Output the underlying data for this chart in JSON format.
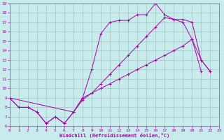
{
  "background_color": "#c8ecec",
  "grid_color": "#9ab8b8",
  "line_color": "#aa00aa",
  "xlabel": "Windchill (Refroidissement éolien,°C)",
  "xlim": [
    0,
    23
  ],
  "ylim": [
    6,
    19
  ],
  "yticks": [
    6,
    7,
    8,
    9,
    10,
    11,
    12,
    13,
    14,
    15,
    16,
    17,
    18,
    19
  ],
  "xticks": [
    0,
    1,
    2,
    3,
    4,
    5,
    6,
    7,
    8,
    9,
    10,
    11,
    12,
    13,
    14,
    15,
    16,
    17,
    18,
    19,
    20,
    21,
    22,
    23
  ],
  "line1_x": [
    0,
    1,
    2,
    3,
    4,
    5,
    6,
    7,
    8,
    9,
    10,
    11,
    12,
    13,
    14,
    15,
    16,
    17,
    18,
    19,
    20,
    21,
    22
  ],
  "line1_y": [
    9.0,
    8.0,
    8.0,
    7.5,
    6.3,
    7.0,
    6.3,
    7.5,
    9.0,
    12.0,
    15.8,
    17.0,
    17.2,
    17.2,
    17.8,
    17.8,
    19.0,
    17.8,
    17.3,
    17.0,
    15.2,
    13.0,
    11.8
  ],
  "line2_x": [
    0,
    1,
    2,
    3,
    4,
    5,
    6,
    7,
    8,
    9,
    10,
    11,
    12,
    13,
    14,
    15,
    16,
    17,
    18,
    19,
    20,
    21,
    22
  ],
  "line2_y": [
    9.0,
    8.0,
    8.0,
    7.5,
    6.3,
    7.0,
    6.3,
    7.5,
    8.8,
    9.5,
    10.0,
    10.5,
    11.0,
    11.5,
    12.0,
    12.5,
    13.0,
    13.5,
    14.0,
    14.5,
    15.2,
    11.8,
    null
  ],
  "line3_x": [
    0,
    7,
    8,
    9,
    10,
    11,
    12,
    13,
    14,
    15,
    16,
    17,
    18,
    19,
    20,
    21,
    22
  ],
  "line3_y": [
    9.0,
    7.5,
    9.0,
    9.5,
    10.5,
    11.5,
    12.5,
    13.5,
    14.5,
    15.5,
    16.5,
    17.5,
    17.3,
    17.3,
    17.0,
    13.0,
    11.8
  ]
}
